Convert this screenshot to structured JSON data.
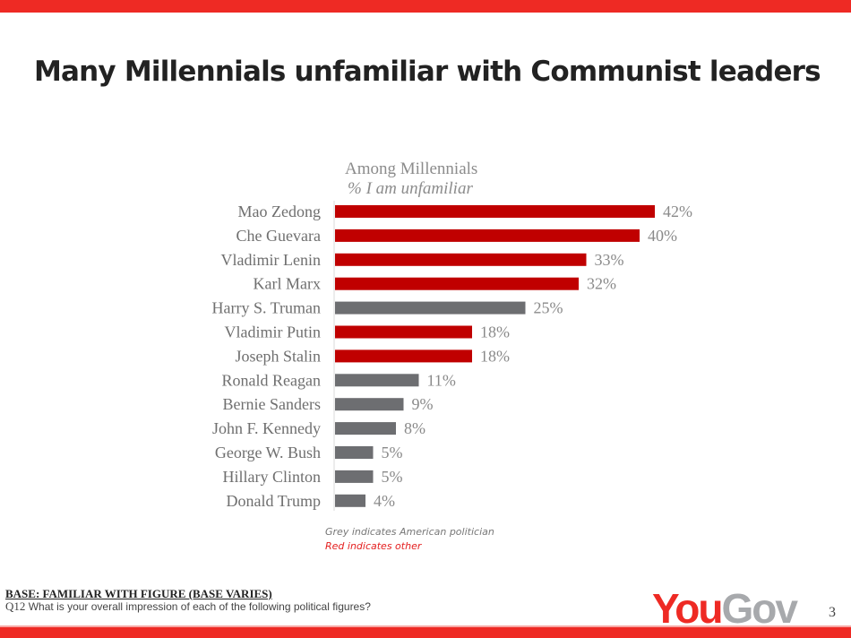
{
  "title": "Many Millennials unfamiliar with Communist leaders",
  "chart_data": {
    "type": "bar",
    "orientation": "horizontal",
    "title": "Among Millennials",
    "subtitle": "% I am unfamiliar",
    "categories": [
      "Mao Zedong",
      "Che Guevara",
      "Vladimir Lenin",
      "Karl Marx",
      "Harry S. Truman",
      "Vladimir Putin",
      "Joseph Stalin",
      "Ronald Reagan",
      "Bernie Sanders",
      "John F. Kennedy",
      "George W. Bush",
      "Hillary Clinton",
      "Donald Trump"
    ],
    "values": [
      42,
      40,
      33,
      32,
      25,
      18,
      18,
      11,
      9,
      8,
      5,
      5,
      4
    ],
    "data_labels": [
      "42%",
      "40%",
      "33%",
      "32%",
      "25%",
      "18%",
      "18%",
      "11%",
      "9%",
      "8%",
      "5%",
      "5%",
      "4%"
    ],
    "group": [
      "other",
      "other",
      "other",
      "other",
      "american",
      "other",
      "other",
      "american",
      "american",
      "american",
      "american",
      "american",
      "american"
    ],
    "colors": {
      "american": "#6d6e71",
      "other": "#c00000"
    },
    "xlim": [
      0,
      45
    ],
    "grid": false
  },
  "legend_notes": {
    "grey": "Grey indicates American politician",
    "red": "Red indicates other"
  },
  "footer": {
    "base": "BASE: FAMILIAR WITH FIGURE (BASE VARIES)",
    "question_num": "Q12",
    "question": " What is your overall impression of each of the following political figures?",
    "logo_you": "You",
    "logo_gov": "Gov",
    "page": "3"
  },
  "colors": {
    "brand_red": "#ee2a24",
    "logo_grey": "#a7a9ac"
  }
}
